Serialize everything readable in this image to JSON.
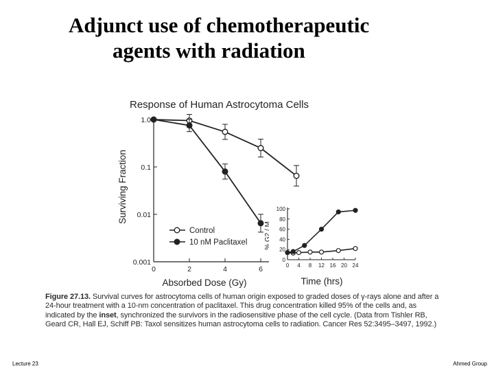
{
  "slide": {
    "title_line1": "Adjunct use of chemotherapeutic",
    "title_line2": "agents with radiation",
    "footer_left": "Lecture 23",
    "footer_right": "Ahmed Group"
  },
  "colors": {
    "ink": "#222222",
    "background": "#ffffff"
  },
  "caption": {
    "label": "Figure 27.13.",
    "text": "Survival curves for astrocytoma cells of human origin exposed to graded doses of γ-rays alone and after a 24-hour treatment with a 10-nm concentration of paclitaxel. This drug concentration killed 95% of the cells and, as indicated by the ",
    "bold_word": "inset",
    "text2": ", synchronized the survivors in the radiosensitive phase of the cell cycle. (Data from Tishler RB, Geard CR, Hall EJ, Schiff PB: Taxol sensitizes human astrocytoma cells to radiation. Cancer Res 52:3495–3497, 1992.)"
  },
  "chart_data": [
    {
      "type": "line",
      "title": "Response of Human Astrocytoma Cells",
      "xlabel": "Absorbed Dose (Gy)",
      "ylabel": "Surviving Fraction",
      "y_scale": "log",
      "xlim": [
        0,
        8
      ],
      "ylim": [
        0.001,
        1.0
      ],
      "x_ticks": [
        "0",
        "2",
        "4",
        "6"
      ],
      "y_ticks": [
        "1.0",
        "0.1",
        "0.01",
        "0.001"
      ],
      "legend_placement": "bottom-right",
      "series": [
        {
          "name": "Control",
          "marker": "open-circle",
          "x": [
            0,
            2,
            4,
            6,
            8
          ],
          "y": [
            1.0,
            0.95,
            0.55,
            0.25,
            0.065
          ]
        },
        {
          "name": "10 nM Paclitaxel",
          "marker": "filled-circle",
          "x": [
            0,
            2,
            4,
            6
          ],
          "y": [
            1.0,
            0.75,
            0.08,
            0.0065
          ]
        }
      ]
    },
    {
      "type": "line",
      "title": "",
      "xlabel": "Time (hrs)",
      "ylabel": "% G2 / M",
      "xlim": [
        0,
        24
      ],
      "ylim": [
        0,
        100
      ],
      "x_ticks": [
        "0",
        "4",
        "8",
        "12",
        "16",
        "20",
        "24"
      ],
      "y_ticks": [
        "100",
        "80",
        "60",
        "40",
        "20",
        "0"
      ],
      "series": [
        {
          "name": "Control",
          "marker": "open-circle",
          "x": [
            0,
            2,
            4,
            8,
            12,
            18,
            24
          ],
          "y": [
            14,
            13,
            14,
            15,
            15,
            18,
            22
          ]
        },
        {
          "name": "10 nM Paclitaxel",
          "marker": "filled-circle",
          "x": [
            0,
            2,
            6,
            12,
            18,
            24
          ],
          "y": [
            14,
            16,
            28,
            60,
            94,
            97
          ]
        }
      ]
    }
  ]
}
